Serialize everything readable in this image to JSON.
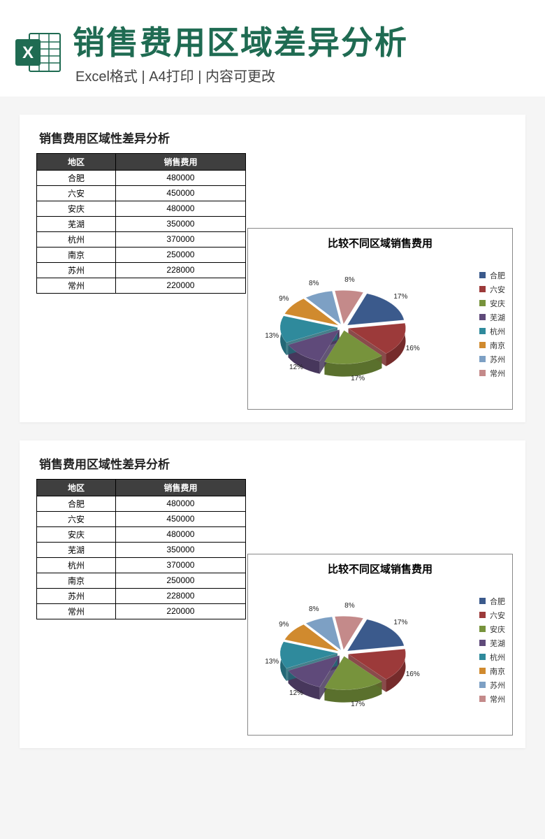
{
  "header": {
    "main_title": "销售费用区域差异分析",
    "subtitle": "Excel格式 | A4打印 | 内容可更改",
    "icon_accent": "#1f6b52",
    "icon_letter": "X"
  },
  "page_bg": "#f5f5f5",
  "panel_bg": "#ffffff",
  "table": {
    "title": "销售费用区域性差异分析",
    "header_bg": "#3f3f3f",
    "header_fg": "#ffffff",
    "border_color": "#000000",
    "columns": [
      "地区",
      "销售费用"
    ],
    "rows": [
      [
        "合肥",
        "480000"
      ],
      [
        "六安",
        "450000"
      ],
      [
        "安庆",
        "480000"
      ],
      [
        "芜湖",
        "350000"
      ],
      [
        "杭州",
        "370000"
      ],
      [
        "南京",
        "250000"
      ],
      [
        "苏州",
        "228000"
      ],
      [
        "常州",
        "220000"
      ]
    ]
  },
  "chart": {
    "title": "比较不同区域销售费用",
    "type": "pie-3d-exploded",
    "border_color": "#888888",
    "background_color": "#ffffff",
    "title_fontsize": 15,
    "label_fontsize": 10,
    "slices": [
      {
        "label": "合肥",
        "pct": 17,
        "color": "#3b5a8c",
        "side": "#2c4369"
      },
      {
        "label": "六安",
        "pct": 16,
        "color": "#9c3a3a",
        "side": "#752b2b"
      },
      {
        "label": "安庆",
        "pct": 17,
        "color": "#77933c",
        "side": "#5a702d"
      },
      {
        "label": "芜湖",
        "pct": 12,
        "color": "#5f4a7a",
        "side": "#47375c"
      },
      {
        "label": "杭州",
        "pct": 13,
        "color": "#2f8a9c",
        "side": "#236876"
      },
      {
        "label": "南京",
        "pct": 9,
        "color": "#d08a2e",
        "side": "#a36b22"
      },
      {
        "label": "苏州",
        "pct": 8,
        "color": "#7da0c4",
        "side": "#5f7b97"
      },
      {
        "label": "常州",
        "pct": 8,
        "color": "#c48a8a",
        "side": "#9a6a6a"
      }
    ],
    "legend_swatch_size": 9
  }
}
